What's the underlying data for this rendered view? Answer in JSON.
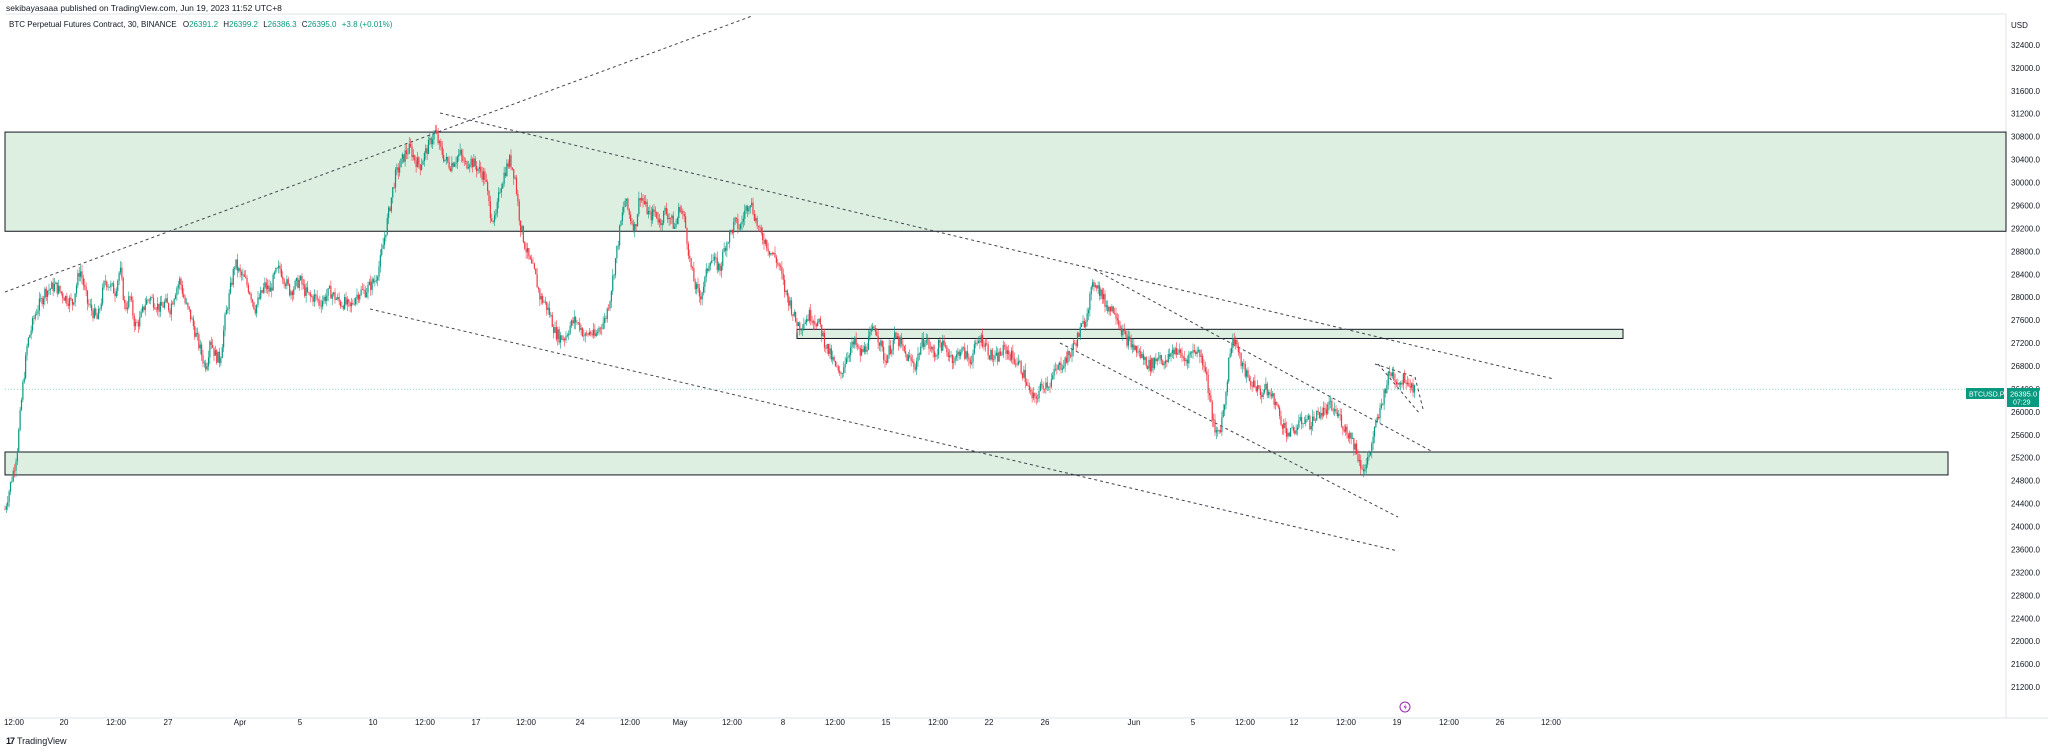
{
  "publish_line": "sekibayasaaa published on TradingView.com, Jun 19, 2023 11:52 UTC+8",
  "footer": {
    "brand": "TradingView",
    "logo": "tradingview-logo-icon"
  },
  "legend": {
    "symbol": "BTC Perpetual Futures Contract, 30, BINANCE",
    "open_label": "O",
    "open": "26391.2",
    "high_label": "H",
    "high": "26399.2",
    "low_label": "L",
    "low": "26386.3",
    "close_label": "C",
    "close": "26395.0",
    "change": "+3.8 (+0.01%)"
  },
  "colors": {
    "up": "#089981",
    "down": "#f23645",
    "zone_fill": "#dcefe0",
    "zone_border": "#131722",
    "price_tag": "#089981",
    "last_price_line": "#089981"
  },
  "price_tag": {
    "symbol": "BTCUSD.P",
    "price": "26395.0",
    "countdown": "07:29"
  },
  "lightning_icon": "lightning-icon",
  "chart_data": {
    "type": "candlestick",
    "title": "",
    "y_unit": "USD",
    "ylim": [
      20800,
      32800
    ],
    "y_ticks": [
      "32400.0",
      "32000.0",
      "31600.0",
      "31200.0",
      "30800.0",
      "30400.0",
      "30000.0",
      "29600.0",
      "29200.0",
      "28800.0",
      "28400.0",
      "28000.0",
      "27600.0",
      "27200.0",
      "26800.0",
      "26400.0",
      "26000.0",
      "25600.0",
      "25200.0",
      "24800.0",
      "24400.0",
      "24000.0",
      "23600.0",
      "23200.0",
      "22800.0",
      "22400.0",
      "22000.0",
      "21600.0",
      "21200.0"
    ],
    "x_ticks": [
      "12:00",
      "20",
      "12:00",
      "27",
      "Apr",
      "5",
      "10",
      "12:00",
      "17",
      "12:00",
      "24",
      "12:00",
      "May",
      "12:00",
      "8",
      "12:00",
      "15",
      "12:00",
      "22",
      "26",
      "Jun",
      "5",
      "12:00",
      "12",
      "12:00",
      "19",
      "12:00",
      "26",
      "12:00"
    ],
    "last_price": 26395.0,
    "price_path": [
      [
        0,
        24300
      ],
      [
        2,
        24700
      ],
      [
        4,
        25100
      ],
      [
        5,
        25400
      ],
      [
        7,
        26400
      ],
      [
        9,
        27200
      ],
      [
        12,
        27700
      ],
      [
        16,
        28100
      ],
      [
        20,
        28200
      ],
      [
        24,
        28000
      ],
      [
        27,
        27900
      ],
      [
        30,
        28500
      ],
      [
        33,
        27900
      ],
      [
        37,
        27600
      ],
      [
        40,
        28300
      ],
      [
        44,
        28100
      ],
      [
        46,
        28500
      ],
      [
        48,
        27800
      ],
      [
        50,
        28000
      ],
      [
        52,
        27500
      ],
      [
        54,
        27600
      ],
      [
        56,
        27900
      ],
      [
        58,
        28000
      ],
      [
        60,
        27900
      ],
      [
        62,
        27800
      ],
      [
        64,
        27900
      ],
      [
        66,
        27800
      ],
      [
        68,
        28100
      ],
      [
        70,
        28300
      ],
      [
        72,
        27900
      ],
      [
        74,
        27700
      ],
      [
        76,
        27400
      ],
      [
        78,
        27100
      ],
      [
        80,
        26800
      ],
      [
        81,
        26900
      ],
      [
        82,
        27300
      ],
      [
        84,
        27000
      ],
      [
        86,
        26900
      ],
      [
        88,
        27600
      ],
      [
        90,
        28100
      ],
      [
        92,
        28600
      ],
      [
        94,
        28400
      ],
      [
        96,
        28300
      ],
      [
        98,
        28100
      ],
      [
        100,
        27800
      ],
      [
        102,
        28000
      ],
      [
        104,
        28200
      ],
      [
        106,
        28100
      ],
      [
        108,
        28400
      ],
      [
        110,
        28500
      ],
      [
        112,
        28300
      ],
      [
        114,
        28100
      ],
      [
        116,
        28200
      ],
      [
        118,
        28300
      ],
      [
        120,
        28100
      ],
      [
        122,
        28000
      ],
      [
        124,
        28000
      ],
      [
        126,
        27900
      ],
      [
        128,
        28000
      ],
      [
        130,
        28100
      ],
      [
        132,
        28000
      ],
      [
        134,
        27900
      ],
      [
        136,
        27900
      ],
      [
        138,
        27800
      ],
      [
        140,
        28000
      ],
      [
        142,
        28100
      ],
      [
        144,
        28100
      ],
      [
        146,
        28200
      ],
      [
        148,
        28300
      ],
      [
        150,
        28600
      ],
      [
        152,
        29100
      ],
      [
        154,
        29600
      ],
      [
        156,
        30100
      ],
      [
        158,
        30300
      ],
      [
        160,
        30500
      ],
      [
        162,
        30600
      ],
      [
        164,
        30400
      ],
      [
        166,
        30300
      ],
      [
        168,
        30500
      ],
      [
        170,
        30700
      ],
      [
        172,
        30900
      ],
      [
        174,
        30600
      ],
      [
        176,
        30400
      ],
      [
        178,
        30300
      ],
      [
        180,
        30400
      ],
      [
        182,
        30500
      ],
      [
        184,
        30300
      ],
      [
        186,
        30400
      ],
      [
        188,
        30300
      ],
      [
        190,
        30200
      ],
      [
        192,
        30100
      ],
      [
        194,
        29500
      ],
      [
        196,
        29300
      ],
      [
        198,
        29900
      ],
      [
        200,
        30200
      ],
      [
        202,
        30400
      ],
      [
        204,
        30100
      ],
      [
        206,
        29300
      ],
      [
        208,
        28900
      ],
      [
        210,
        28600
      ],
      [
        212,
        28400
      ],
      [
        214,
        28000
      ],
      [
        216,
        27900
      ],
      [
        218,
        27700
      ],
      [
        220,
        27400
      ],
      [
        222,
        27300
      ],
      [
        224,
        27300
      ],
      [
        226,
        27500
      ],
      [
        228,
        27600
      ],
      [
        230,
        27500
      ],
      [
        232,
        27300
      ],
      [
        234,
        27400
      ],
      [
        236,
        27300
      ],
      [
        238,
        27500
      ],
      [
        240,
        27600
      ],
      [
        242,
        28000
      ],
      [
        244,
        28600
      ],
      [
        246,
        29200
      ],
      [
        248,
        29700
      ],
      [
        250,
        29400
      ],
      [
        252,
        29200
      ],
      [
        254,
        29800
      ],
      [
        256,
        29600
      ],
      [
        258,
        29400
      ],
      [
        260,
        29500
      ],
      [
        262,
        29300
      ],
      [
        264,
        29500
      ],
      [
        266,
        29400
      ],
      [
        268,
        29200
      ],
      [
        270,
        29600
      ],
      [
        272,
        29300
      ],
      [
        274,
        28600
      ],
      [
        276,
        28200
      ],
      [
        278,
        28000
      ],
      [
        280,
        28300
      ],
      [
        282,
        28700
      ],
      [
        284,
        28600
      ],
      [
        286,
        28500
      ],
      [
        288,
        28900
      ],
      [
        290,
        29100
      ],
      [
        292,
        29300
      ],
      [
        294,
        29200
      ],
      [
        296,
        29500
      ],
      [
        298,
        29700
      ],
      [
        300,
        29400
      ],
      [
        302,
        29100
      ],
      [
        304,
        29000
      ],
      [
        306,
        28800
      ],
      [
        308,
        28700
      ],
      [
        310,
        28500
      ],
      [
        312,
        28100
      ],
      [
        314,
        27900
      ],
      [
        316,
        27600
      ],
      [
        318,
        27500
      ],
      [
        320,
        27600
      ],
      [
        322,
        27700
      ],
      [
        324,
        27600
      ],
      [
        326,
        27500
      ],
      [
        328,
        27200
      ],
      [
        330,
        27000
      ],
      [
        332,
        26800
      ],
      [
        334,
        26600
      ],
      [
        336,
        26900
      ],
      [
        338,
        27100
      ],
      [
        340,
        27200
      ],
      [
        342,
        27000
      ],
      [
        344,
        27100
      ],
      [
        346,
        27300
      ],
      [
        348,
        27500
      ],
      [
        350,
        27200
      ],
      [
        352,
        26900
      ],
      [
        354,
        27100
      ],
      [
        356,
        27300
      ],
      [
        358,
        27200
      ],
      [
        360,
        27000
      ],
      [
        362,
        26900
      ],
      [
        364,
        26800
      ],
      [
        366,
        27100
      ],
      [
        368,
        27300
      ],
      [
        370,
        27100
      ],
      [
        372,
        27000
      ],
      [
        374,
        27200
      ],
      [
        376,
        27100
      ],
      [
        378,
        27000
      ],
      [
        380,
        26900
      ],
      [
        382,
        27100
      ],
      [
        384,
        27000
      ],
      [
        386,
        26900
      ],
      [
        388,
        27100
      ],
      [
        390,
        27300
      ],
      [
        392,
        27200
      ],
      [
        394,
        27000
      ],
      [
        396,
        26900
      ],
      [
        398,
        27000
      ],
      [
        400,
        27100
      ],
      [
        402,
        27000
      ],
      [
        404,
        26900
      ],
      [
        406,
        26800
      ],
      [
        408,
        26600
      ],
      [
        410,
        26300
      ],
      [
        412,
        26200
      ],
      [
        414,
        26400
      ],
      [
        416,
        26500
      ],
      [
        418,
        26500
      ],
      [
        420,
        26700
      ],
      [
        422,
        26800
      ],
      [
        424,
        26900
      ],
      [
        426,
        27000
      ],
      [
        428,
        27200
      ],
      [
        430,
        27400
      ],
      [
        432,
        27600
      ],
      [
        434,
        28000
      ],
      [
        436,
        28300
      ],
      [
        438,
        28100
      ],
      [
        440,
        27900
      ],
      [
        442,
        27800
      ],
      [
        444,
        27800
      ],
      [
        446,
        27500
      ],
      [
        448,
        27300
      ],
      [
        450,
        27200
      ],
      [
        452,
        27100
      ],
      [
        454,
        27000
      ],
      [
        456,
        26900
      ],
      [
        458,
        26800
      ],
      [
        460,
        26900
      ],
      [
        462,
        27000
      ],
      [
        464,
        26800
      ],
      [
        466,
        27000
      ],
      [
        468,
        27100
      ],
      [
        470,
        27000
      ],
      [
        472,
        26900
      ],
      [
        474,
        27000
      ],
      [
        476,
        27100
      ],
      [
        478,
        27000
      ],
      [
        480,
        26800
      ],
      [
        482,
        26200
      ],
      [
        484,
        25600
      ],
      [
        486,
        25700
      ],
      [
        488,
        26200
      ],
      [
        490,
        27100
      ],
      [
        492,
        27300
      ],
      [
        494,
        26900
      ],
      [
        496,
        26700
      ],
      [
        498,
        26500
      ],
      [
        500,
        26500
      ],
      [
        502,
        26300
      ],
      [
        504,
        26400
      ],
      [
        506,
        26300
      ],
      [
        508,
        26200
      ],
      [
        510,
        25900
      ],
      [
        512,
        25700
      ],
      [
        514,
        25600
      ],
      [
        516,
        25700
      ],
      [
        518,
        25800
      ],
      [
        520,
        25900
      ],
      [
        522,
        25800
      ],
      [
        524,
        25900
      ],
      [
        526,
        26000
      ],
      [
        528,
        26000
      ],
      [
        530,
        26100
      ],
      [
        532,
        26000
      ],
      [
        534,
        25900
      ],
      [
        536,
        25700
      ],
      [
        538,
        25600
      ],
      [
        540,
        25400
      ],
      [
        542,
        25100
      ],
      [
        544,
        25000
      ],
      [
        546,
        25300
      ],
      [
        548,
        25700
      ],
      [
        550,
        26000
      ],
      [
        552,
        26400
      ],
      [
        554,
        26700
      ],
      [
        556,
        26600
      ],
      [
        558,
        26500
      ],
      [
        560,
        26600
      ],
      [
        562,
        26500
      ],
      [
        564,
        26400
      ]
    ],
    "zones": [
      {
        "name": "upper-supply-zone",
        "low": 29150,
        "high": 30880
      },
      {
        "name": "mid-resistance-zone",
        "low": 27280,
        "high": 27440
      },
      {
        "name": "lower-demand-zone",
        "low": 24900,
        "high": 25300
      }
    ]
  }
}
